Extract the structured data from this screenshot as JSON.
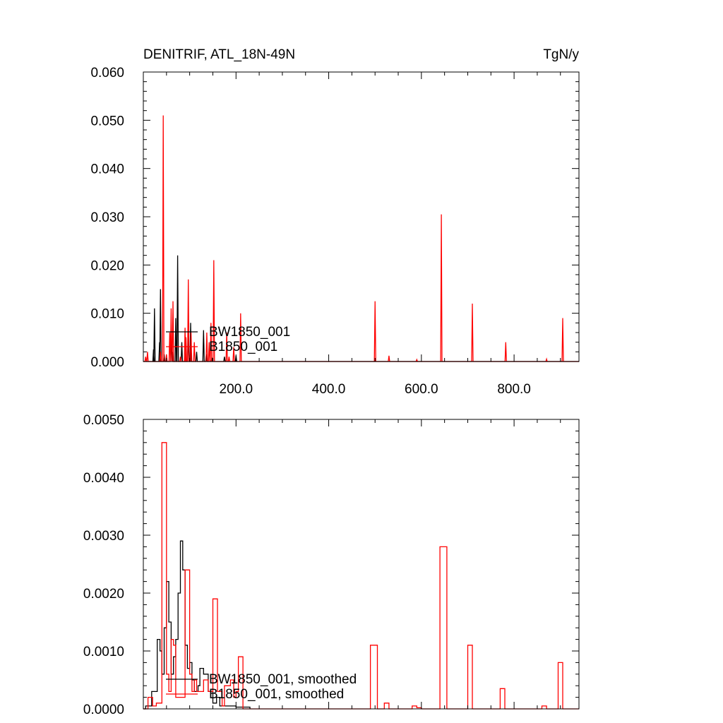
{
  "chart_data": [
    {
      "type": "line",
      "title": "DENITRIF, ATL_18N-49N",
      "units": "TgN/y",
      "xlim": [
        0,
        940
      ],
      "ylim": [
        0,
        0.06
      ],
      "x_ticks": [
        200,
        400,
        600,
        800
      ],
      "x_tick_labels": [
        "200.0",
        "400.0",
        "600.0",
        "800.0"
      ],
      "y_ticks": [
        0,
        0.01,
        0.02,
        0.03,
        0.04,
        0.05,
        0.06
      ],
      "y_tick_labels": [
        "0.000",
        "0.010",
        "0.020",
        "0.030",
        "0.040",
        "0.050",
        "0.060"
      ],
      "legend_position": "lower-left",
      "series": [
        {
          "name": "BW1850_001",
          "color": "#000000",
          "spikes": [
            [
              22,
              0.0025
            ],
            [
              24,
              0.011
            ],
            [
              35,
              0.004
            ],
            [
              37,
              0.015
            ],
            [
              45,
              0.0015
            ],
            [
              60,
              0.005
            ],
            [
              63,
              0.002
            ],
            [
              70,
              0.009
            ],
            [
              74,
              0.022
            ],
            [
              83,
              0.004
            ],
            [
              97,
              0.006
            ],
            [
              102,
              0.008
            ],
            [
              115,
              0.002
            ],
            [
              130,
              0.0065
            ],
            [
              136,
              0.0015
            ],
            [
              148,
              0.0008
            ],
            [
              175,
              0.001
            ],
            [
              200,
              0.0012
            ]
          ]
        },
        {
          "name": "B1850_001",
          "color": "#ff0000",
          "spikes": [
            [
              5,
              0.001
            ],
            [
              9,
              0.002
            ],
            [
              37,
              0.002
            ],
            [
              43,
              0.051
            ],
            [
              50,
              0.0015
            ],
            [
              57,
              0.006
            ],
            [
              60,
              0.011
            ],
            [
              64,
              0.0125
            ],
            [
              80,
              0.001
            ],
            [
              90,
              0.007
            ],
            [
              92,
              0.005
            ],
            [
              97,
              0.017
            ],
            [
              103,
              0.006
            ],
            [
              110,
              0.004
            ],
            [
              137,
              0.006
            ],
            [
              142,
              0.004
            ],
            [
              146,
              0.008
            ],
            [
              152,
              0.021
            ],
            [
              180,
              0.006
            ],
            [
              185,
              0.001
            ],
            [
              195,
              0.003
            ],
            [
              210,
              0.01
            ],
            [
              500,
              0.0125
            ],
            [
              530,
              0.0012
            ],
            [
              590,
              0.0004
            ],
            [
              643,
              0.0305
            ],
            [
              710,
              0.012
            ],
            [
              782,
              0.004
            ],
            [
              870,
              0.0005
            ],
            [
              905,
              0.009
            ]
          ]
        }
      ]
    },
    {
      "type": "line",
      "xlim": [
        0,
        940
      ],
      "ylim": [
        0,
        0.005
      ],
      "x_ticks": [
        200,
        400,
        600,
        800
      ],
      "y_ticks": [
        0,
        0.001,
        0.002,
        0.003,
        0.004,
        0.005
      ],
      "y_tick_labels": [
        "0.0000",
        "0.0010",
        "0.0020",
        "0.0030",
        "0.0040",
        "0.0050"
      ],
      "legend_position": "lower-left",
      "series": [
        {
          "name": "BW1850_001, smoothed",
          "color": "#000000",
          "steps": [
            [
              0,
              0
            ],
            [
              5,
              5e-05
            ],
            [
              18,
              0.0003
            ],
            [
              30,
              0.0012
            ],
            [
              36,
              0.001
            ],
            [
              40,
              0.0006
            ],
            [
              45,
              0.0014
            ],
            [
              50,
              0.0022
            ],
            [
              55,
              0.0015
            ],
            [
              60,
              0.0006
            ],
            [
              65,
              0.0009
            ],
            [
              70,
              0.0012
            ],
            [
              75,
              0.002
            ],
            [
              80,
              0.0029
            ],
            [
              85,
              0.0024
            ],
            [
              90,
              0.0011
            ],
            [
              95,
              0.0007
            ],
            [
              100,
              0.0008
            ],
            [
              105,
              0.0005
            ],
            [
              110,
              0.0003
            ],
            [
              118,
              0.0004
            ],
            [
              122,
              0.0007
            ],
            [
              130,
              0.0006
            ],
            [
              140,
              0.0003
            ],
            [
              150,
              0.0001
            ],
            [
              158,
              0.0002
            ],
            [
              165,
              5e-05
            ],
            [
              200,
              3e-05
            ],
            [
              230,
              0
            ]
          ]
        },
        {
          "name": "B1850_001, smoothed",
          "color": "#ff0000",
          "steps": [
            [
              0,
              0
            ],
            [
              10,
              0.0002
            ],
            [
              20,
              5e-05
            ],
            [
              28,
              0.0001
            ],
            [
              40,
              0.0046
            ],
            [
              50,
              0.0006
            ],
            [
              55,
              0.0003
            ],
            [
              60,
              0.0012
            ],
            [
              65,
              0.0011
            ],
            [
              70,
              0.0002
            ],
            [
              90,
              0.0024
            ],
            [
              100,
              0.0006
            ],
            [
              105,
              0.0003
            ],
            [
              110,
              0.0005
            ],
            [
              115,
              0.0003
            ],
            [
              130,
              0.0005
            ],
            [
              140,
              0.0003
            ],
            [
              150,
              0.0019
            ],
            [
              160,
              0.0003
            ],
            [
              170,
              5e-05
            ],
            [
              175,
              0.0004
            ],
            [
              182,
              0.0004
            ],
            [
              188,
              0.0005
            ],
            [
              195,
              0.0002
            ],
            [
              200,
              0.0003
            ],
            [
              205,
              0.0009
            ],
            [
              215,
              0
            ],
            [
              300,
              0
            ],
            [
              330,
              0
            ],
            [
              490,
              0.0011
            ],
            [
              505,
              0
            ],
            [
              520,
              0.0001
            ],
            [
              530,
              0
            ],
            [
              580,
              5e-05
            ],
            [
              590,
              2e-05
            ],
            [
              600,
              0
            ],
            [
              640,
              0.0028
            ],
            [
              655,
              0
            ],
            [
              700,
              0.0011
            ],
            [
              710,
              0
            ],
            [
              770,
              0.00035
            ],
            [
              780,
              0
            ],
            [
              860,
              5e-05
            ],
            [
              870,
              0
            ],
            [
              895,
              0.0008
            ],
            [
              905,
              0
            ],
            [
              940,
              0
            ]
          ]
        }
      ]
    }
  ]
}
